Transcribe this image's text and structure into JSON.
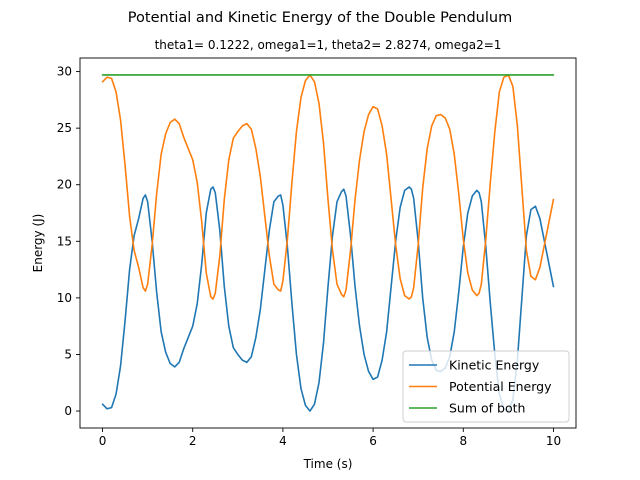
{
  "chart_data": {
    "type": "line",
    "title": "Potential and Kinetic Energy of the Double Pendulum",
    "subtitle": "theta1= 0.1222, omega1=1, theta2= 2.8274, omega2=1",
    "xlabel": "Time (s)",
    "ylabel": "Energy (J)",
    "xlim": [
      -0.5,
      10.5
    ],
    "ylim": [
      -1.5,
      31.2
    ],
    "xticks": [
      0,
      2,
      4,
      6,
      8,
      10
    ],
    "xtick_labels": [
      "0",
      "2",
      "4",
      "6",
      "8",
      "10"
    ],
    "yticks": [
      0,
      5,
      10,
      15,
      20,
      25,
      30
    ],
    "ytick_labels": [
      "0",
      "5",
      "10",
      "15",
      "20",
      "25",
      "30"
    ],
    "grid": false,
    "legend_position": "lower-right",
    "x": [
      0,
      0.1,
      0.2,
      0.3,
      0.4,
      0.5,
      0.6,
      0.7,
      0.8,
      0.9,
      0.95,
      1.0,
      1.1,
      1.2,
      1.3,
      1.4,
      1.5,
      1.6,
      1.7,
      1.8,
      1.9,
      2.0,
      2.1,
      2.2,
      2.3,
      2.4,
      2.45,
      2.5,
      2.6,
      2.7,
      2.8,
      2.9,
      3.0,
      3.1,
      3.2,
      3.3,
      3.4,
      3.5,
      3.6,
      3.7,
      3.8,
      3.9,
      3.95,
      4.0,
      4.1,
      4.2,
      4.3,
      4.4,
      4.5,
      4.6,
      4.7,
      4.8,
      4.9,
      5.0,
      5.1,
      5.2,
      5.3,
      5.35,
      5.4,
      5.5,
      5.6,
      5.7,
      5.8,
      5.9,
      6.0,
      6.1,
      6.2,
      6.3,
      6.4,
      6.5,
      6.6,
      6.7,
      6.8,
      6.85,
      6.9,
      7.0,
      7.1,
      7.2,
      7.3,
      7.4,
      7.5,
      7.6,
      7.7,
      7.8,
      7.9,
      8.0,
      8.1,
      8.2,
      8.3,
      8.35,
      8.4,
      8.5,
      8.6,
      8.7,
      8.8,
      8.9,
      9.0,
      9.1,
      9.2,
      9.3,
      9.4,
      9.5,
      9.6,
      9.7,
      9.8,
      9.9,
      10.0
    ],
    "series": [
      {
        "name": "Kinetic Energy",
        "color": "#1f77b4",
        "values": [
          0.6,
          0.2,
          0.3,
          1.5,
          4.0,
          8.0,
          12.5,
          15.5,
          17.0,
          18.8,
          19.1,
          18.5,
          15.0,
          10.5,
          7.0,
          5.2,
          4.2,
          3.9,
          4.3,
          5.5,
          6.5,
          7.5,
          9.5,
          13.0,
          17.5,
          19.6,
          19.8,
          19.3,
          16.0,
          11.0,
          7.5,
          5.6,
          5.0,
          4.5,
          4.3,
          4.8,
          6.5,
          9.0,
          12.5,
          16.0,
          18.5,
          19.0,
          19.1,
          18.2,
          14.5,
          9.5,
          5.0,
          2.0,
          0.5,
          0.0,
          0.6,
          2.5,
          6.0,
          11.0,
          15.5,
          18.5,
          19.4,
          19.6,
          19.0,
          15.5,
          11.0,
          7.5,
          5.0,
          3.5,
          2.8,
          3.0,
          4.5,
          7.0,
          11.0,
          15.0,
          18.0,
          19.5,
          19.8,
          19.6,
          18.8,
          15.0,
          10.0,
          6.5,
          4.5,
          3.6,
          3.5,
          3.8,
          4.8,
          7.0,
          10.5,
          14.5,
          17.5,
          19.0,
          19.5,
          19.3,
          18.5,
          14.5,
          9.5,
          5.0,
          1.5,
          0.2,
          0.0,
          1.0,
          4.5,
          10.0,
          15.5,
          17.8,
          18.1,
          17.0,
          15.0,
          13.0,
          11.0
        ]
      },
      {
        "name": "Potential Energy",
        "color": "#ff7f0e",
        "values": [
          29.1,
          29.5,
          29.4,
          28.2,
          25.7,
          21.7,
          17.2,
          14.2,
          12.7,
          10.9,
          10.6,
          11.2,
          14.7,
          19.2,
          22.7,
          24.5,
          25.5,
          25.8,
          25.4,
          24.2,
          23.2,
          22.2,
          20.2,
          16.7,
          12.2,
          10.1,
          9.9,
          10.4,
          13.7,
          18.7,
          22.2,
          24.1,
          24.7,
          25.2,
          25.4,
          24.9,
          23.2,
          20.7,
          17.2,
          13.7,
          11.2,
          10.7,
          10.6,
          11.5,
          15.2,
          20.2,
          24.7,
          27.7,
          29.2,
          29.7,
          29.1,
          27.2,
          23.7,
          18.7,
          14.2,
          11.2,
          10.3,
          10.1,
          10.7,
          14.2,
          18.7,
          22.2,
          24.7,
          26.2,
          26.9,
          26.7,
          25.2,
          22.7,
          18.7,
          14.7,
          11.7,
          10.2,
          9.9,
          10.1,
          10.9,
          14.7,
          19.7,
          23.2,
          25.2,
          26.1,
          26.2,
          25.9,
          24.9,
          22.7,
          19.2,
          15.2,
          12.2,
          10.7,
          10.2,
          10.4,
          11.2,
          15.2,
          20.2,
          24.7,
          28.2,
          29.5,
          29.7,
          28.7,
          25.2,
          19.7,
          14.2,
          11.9,
          11.6,
          12.7,
          14.7,
          16.7,
          18.7
        ]
      },
      {
        "name": "Sum of both",
        "color": "#2ca02c",
        "values": [
          29.7,
          29.7,
          29.7,
          29.7,
          29.7,
          29.7,
          29.7,
          29.7,
          29.7,
          29.7,
          29.7,
          29.7,
          29.7,
          29.7,
          29.7,
          29.7,
          29.7,
          29.7,
          29.7,
          29.7,
          29.7,
          29.7,
          29.7,
          29.7,
          29.7,
          29.7,
          29.7,
          29.7,
          29.7,
          29.7,
          29.7,
          29.7,
          29.7,
          29.7,
          29.7,
          29.7,
          29.7,
          29.7,
          29.7,
          29.7,
          29.7,
          29.7,
          29.7,
          29.7,
          29.7,
          29.7,
          29.7,
          29.7,
          29.7,
          29.7,
          29.7,
          29.7,
          29.7,
          29.7,
          29.7,
          29.7,
          29.7,
          29.7,
          29.7,
          29.7,
          29.7,
          29.7,
          29.7,
          29.7,
          29.7,
          29.7,
          29.7,
          29.7,
          29.7,
          29.7,
          29.7,
          29.7,
          29.7,
          29.7,
          29.7,
          29.7,
          29.7,
          29.7,
          29.7,
          29.7,
          29.7,
          29.7,
          29.7,
          29.7,
          29.7,
          29.7,
          29.7,
          29.7,
          29.7,
          29.7,
          29.7,
          29.7,
          29.7,
          29.7,
          29.7,
          29.7,
          29.7,
          29.7,
          29.7,
          29.7,
          29.7,
          29.7,
          29.7,
          29.7,
          29.7,
          29.7,
          29.7
        ]
      }
    ]
  }
}
